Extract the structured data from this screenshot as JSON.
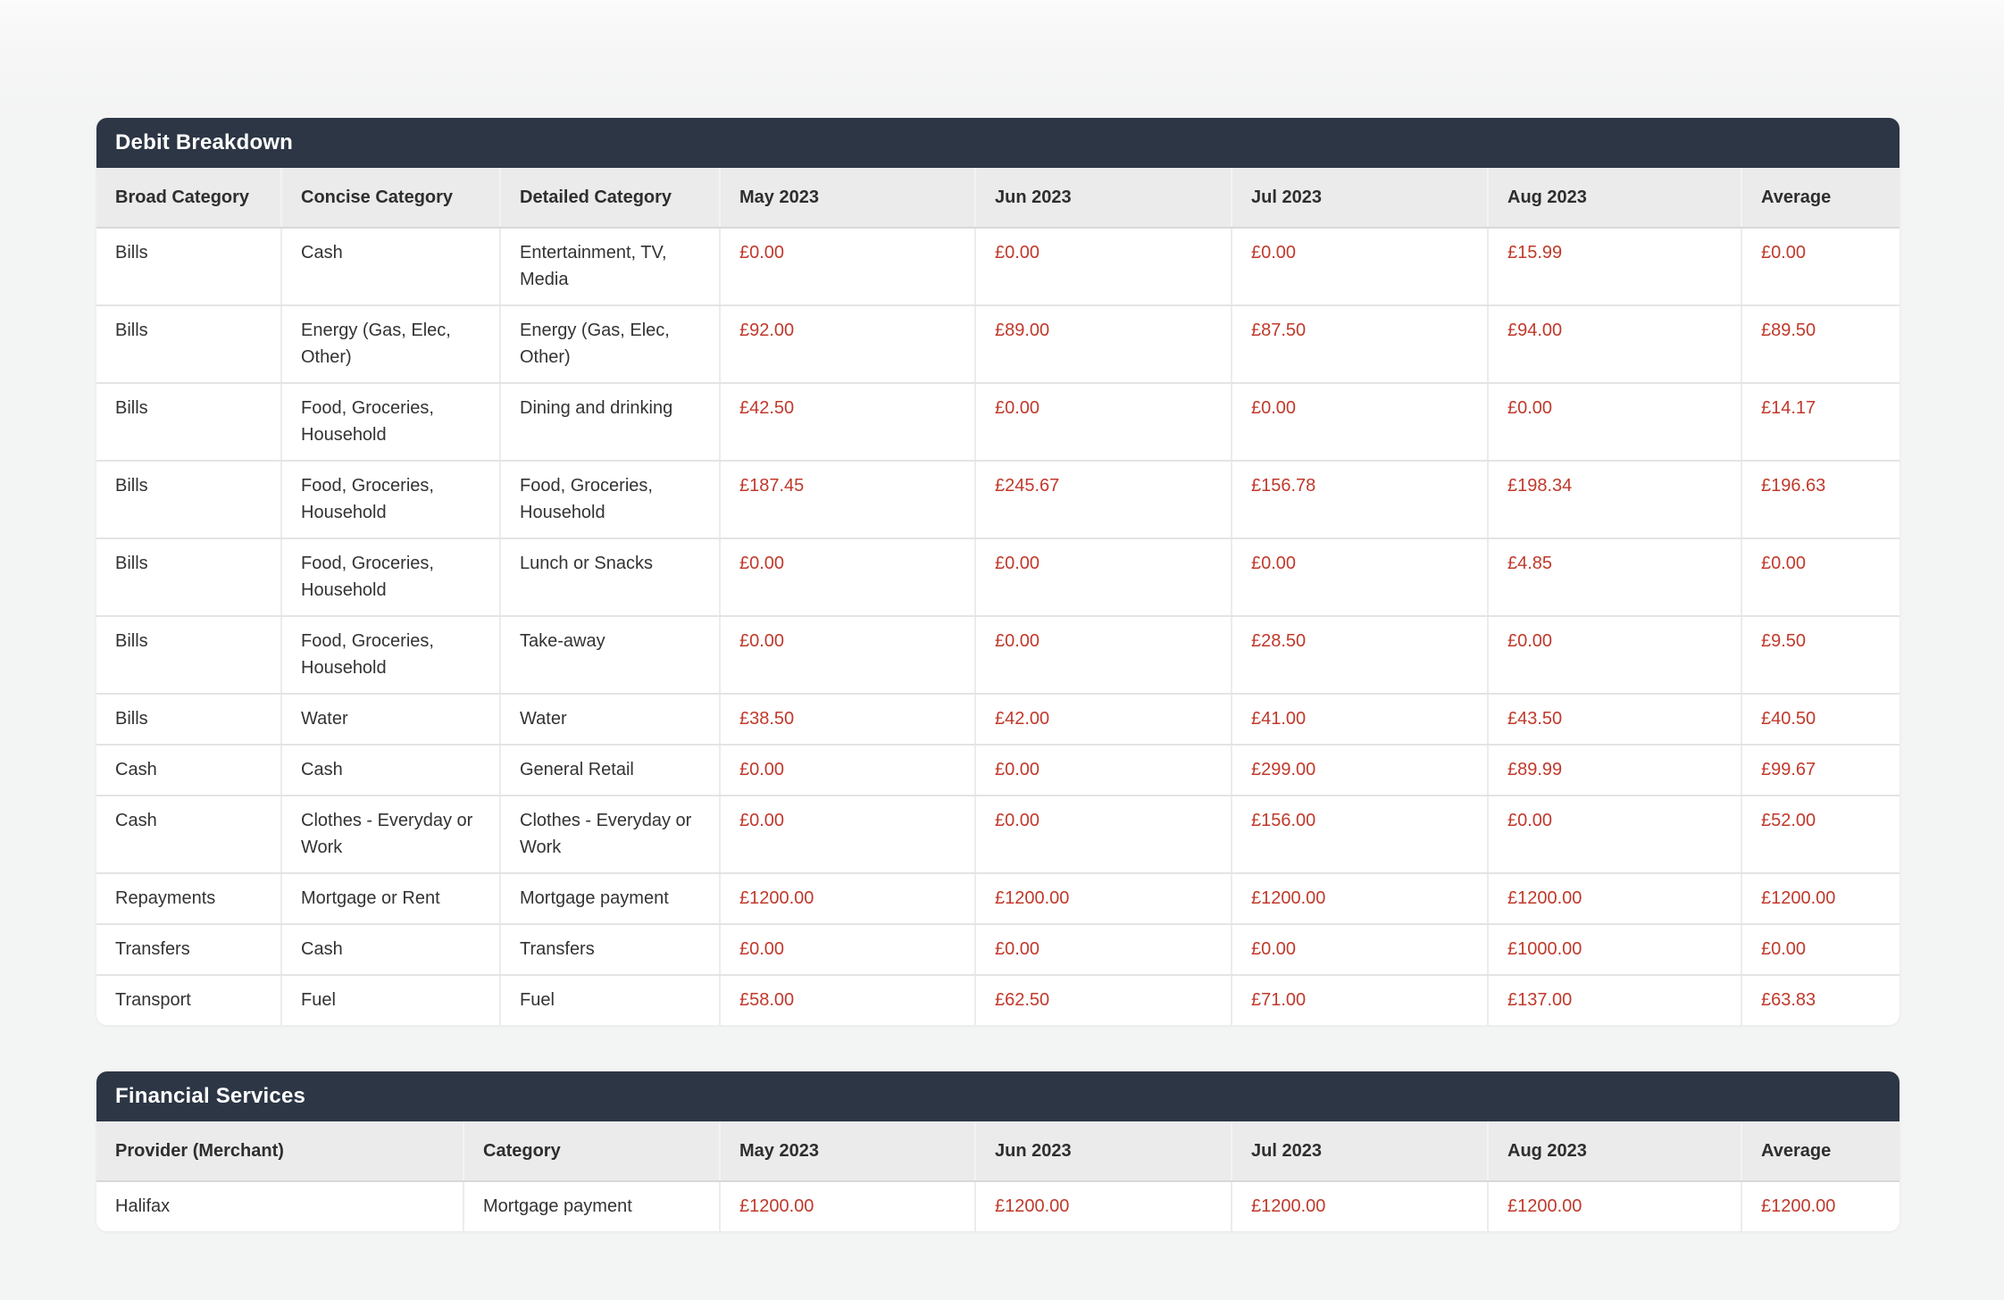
{
  "colors": {
    "panel_header_bg": "#2c3645",
    "panel_header_fg": "#ffffff",
    "column_header_bg": "#ebebeb",
    "amount_red": "#c0392b",
    "text_dark": "#333333"
  },
  "debit_breakdown": {
    "title": "Debit Breakdown",
    "columns": [
      "Broad Category",
      "Concise Category",
      "Detailed Category",
      "May 2023",
      "Jun 2023",
      "Jul 2023",
      "Aug 2023",
      "Average"
    ],
    "rows": [
      [
        "Bills",
        "Cash",
        "Entertainment, TV, Media",
        "£0.00",
        "£0.00",
        "£0.00",
        "£15.99",
        "£0.00"
      ],
      [
        "Bills",
        "Energy (Gas, Elec, Other)",
        "Energy (Gas, Elec, Other)",
        "£92.00",
        "£89.00",
        "£87.50",
        "£94.00",
        "£89.50"
      ],
      [
        "Bills",
        "Food, Groceries, Household",
        "Dining and drinking",
        "£42.50",
        "£0.00",
        "£0.00",
        "£0.00",
        "£14.17"
      ],
      [
        "Bills",
        "Food, Groceries, Household",
        "Food, Groceries, Household",
        "£187.45",
        "£245.67",
        "£156.78",
        "£198.34",
        "£196.63"
      ],
      [
        "Bills",
        "Food, Groceries, Household",
        "Lunch or Snacks",
        "£0.00",
        "£0.00",
        "£0.00",
        "£4.85",
        "£0.00"
      ],
      [
        "Bills",
        "Food, Groceries, Household",
        "Take-away",
        "£0.00",
        "£0.00",
        "£28.50",
        "£0.00",
        "£9.50"
      ],
      [
        "Bills",
        "Water",
        "Water",
        "£38.50",
        "£42.00",
        "£41.00",
        "£43.50",
        "£40.50"
      ],
      [
        "Cash",
        "Cash",
        "General Retail",
        "£0.00",
        "£0.00",
        "£299.00",
        "£89.99",
        "£99.67"
      ],
      [
        "Cash",
        "Clothes - Everyday or Work",
        "Clothes - Everyday or Work",
        "£0.00",
        "£0.00",
        "£156.00",
        "£0.00",
        "£52.00"
      ],
      [
        "Repayments",
        "Mortgage or Rent",
        "Mortgage payment",
        "£1200.00",
        "£1200.00",
        "£1200.00",
        "£1200.00",
        "£1200.00"
      ],
      [
        "Transfers",
        "Cash",
        "Transfers",
        "£0.00",
        "£0.00",
        "£0.00",
        "£1000.00",
        "£0.00"
      ],
      [
        "Transport",
        "Fuel",
        "Fuel",
        "£58.00",
        "£62.50",
        "£71.00",
        "£137.00",
        "£63.83"
      ]
    ]
  },
  "financial_services": {
    "title": "Financial Services",
    "columns": [
      "Provider (Merchant)",
      "Category",
      "May 2023",
      "Jun 2023",
      "Jul 2023",
      "Aug 2023",
      "Average"
    ],
    "rows": [
      [
        "Halifax",
        "Mortgage payment",
        "£1200.00",
        "£1200.00",
        "£1200.00",
        "£1200.00",
        "£1200.00"
      ]
    ]
  }
}
